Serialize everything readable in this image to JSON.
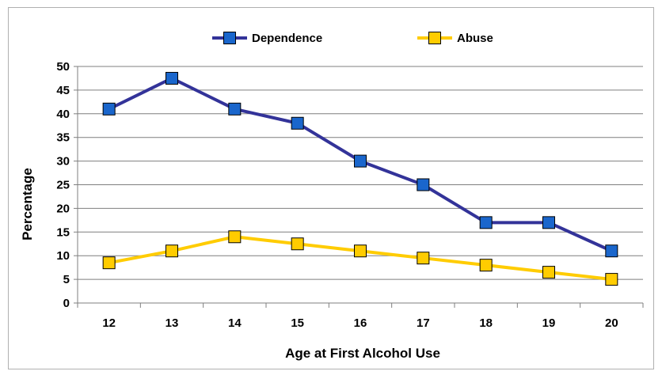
{
  "chart_data": {
    "type": "line",
    "title": "",
    "xlabel": "Age at First Alcohol Use",
    "ylabel": "Percentage",
    "categories": [
      "12",
      "13",
      "14",
      "15",
      "16",
      "17",
      "18",
      "19",
      "20"
    ],
    "ylim": [
      0,
      50
    ],
    "yticks": [
      "0",
      "5",
      "10",
      "15",
      "20",
      "25",
      "30",
      "35",
      "40",
      "45",
      "50"
    ],
    "grid": true,
    "legend_position": "top-center",
    "series": [
      {
        "name": "Dependence",
        "values": [
          41,
          47.5,
          41,
          38,
          30,
          25,
          17,
          17,
          11
        ],
        "line_color": "#333399",
        "marker_color": "#1a66cc"
      },
      {
        "name": "Abuse",
        "values": [
          8.5,
          11,
          14,
          12.5,
          11,
          9.5,
          8,
          6.5,
          5
        ],
        "line_color": "#ffcc00",
        "marker_color": "#ffcc00"
      }
    ]
  }
}
